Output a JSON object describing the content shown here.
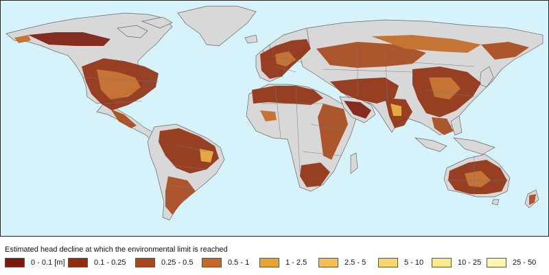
{
  "legend": {
    "title": "Estimated head decline at which the environmental limit is reached",
    "items": [
      {
        "label": "0 - 0.1 [m]",
        "color": "#7a1a0c"
      },
      {
        "label": "0.1 - 0.25",
        "color": "#8f2f10"
      },
      {
        "label": "0.25 - 0.5",
        "color": "#a8481c"
      },
      {
        "label": "0.5 - 1",
        "color": "#c56a25"
      },
      {
        "label": "1 - 2.5",
        "color": "#e8a236"
      },
      {
        "label": "2.5 - 5",
        "color": "#f2bf57"
      },
      {
        "label": "5 - 10",
        "color": "#f7d66e"
      },
      {
        "label": "10 - 25",
        "color": "#fbe98e"
      },
      {
        "label": "25 - 50",
        "color": "#fff5b3"
      }
    ]
  },
  "map_colors": {
    "ocean": "#d6f3fb",
    "land": "#d8d8d8",
    "border": "#666666"
  }
}
